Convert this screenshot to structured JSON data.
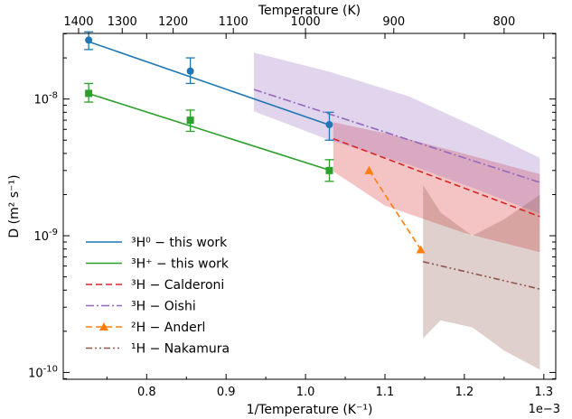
{
  "chart_data": {
    "type": "line",
    "xlabel": "1/Temperature (K⁻¹)",
    "x_top_label": "Temperature (K)",
    "ylabel": "D (m² s⁻¹)",
    "x_offset_label": "1e−3",
    "x_scale_note": "x values are ×1e-3 K⁻¹",
    "xlim": [
      0.695,
      1.315
    ],
    "ylim_log10": [
      -10.05,
      -7.52
    ],
    "y_scale": "log",
    "grid": false,
    "legend_position": "lower-left",
    "x_ticks": [
      0.8,
      0.9,
      1.0,
      1.1,
      1.2,
      1.3
    ],
    "x_tick_labels": [
      "0.8",
      "0.9",
      "1.0",
      "1.1",
      "1.2",
      "1.3"
    ],
    "y_ticks_exp": [
      -10,
      -9,
      -8
    ],
    "y_tick_labels": [
      "10-10",
      "10-9",
      "10-8"
    ],
    "top_ticks_T": [
      1400,
      1300,
      1200,
      1100,
      1000,
      900,
      800
    ],
    "top_tick_labels": [
      "1400",
      "1300",
      "1200",
      "1100",
      "1000",
      "900",
      "800"
    ],
    "series": [
      {
        "name": "³H⁰ − this work",
        "color": "#1f77b4",
        "style": "solid",
        "marker": "circle",
        "line_x": [
          0.727,
          1.03
        ],
        "line_log10y": [
          -7.58,
          -8.19
        ],
        "points": [
          {
            "x": 0.727,
            "y": 2.7e-08,
            "err_lo": 2.3e-08,
            "err_hi": 3.1e-08
          },
          {
            "x": 0.855,
            "y": 1.6e-08,
            "err_lo": 1.3e-08,
            "err_hi": 2e-08
          },
          {
            "x": 1.03,
            "y": 6.5e-09,
            "err_lo": 5e-09,
            "err_hi": 8e-09
          }
        ]
      },
      {
        "name": "³H⁺ − this work",
        "color": "#2ca02c",
        "style": "solid",
        "marker": "square",
        "line_x": [
          0.727,
          1.03
        ],
        "line_log10y": [
          -7.96,
          -8.52
        ],
        "points": [
          {
            "x": 0.727,
            "y": 1.1e-08,
            "err_lo": 9.5e-09,
            "err_hi": 1.3e-08
          },
          {
            "x": 0.855,
            "y": 7e-09,
            "err_lo": 5.8e-09,
            "err_hi": 8.3e-09
          },
          {
            "x": 1.03,
            "y": 3e-09,
            "err_lo": 2.5e-09,
            "err_hi": 3.6e-09
          }
        ]
      },
      {
        "name": "³H − Calderoni",
        "color": "#d62728",
        "style": "dashed",
        "marker": "none",
        "line_x": [
          1.035,
          1.295
        ],
        "line_log10y": [
          -8.29,
          -8.86
        ],
        "band": {
          "x": [
            1.035,
            1.1,
            1.2,
            1.295
          ],
          "lo_log10": [
            -8.53,
            -8.78,
            -8.98,
            -9.12
          ],
          "hi_log10": [
            -8.17,
            -8.25,
            -8.4,
            -8.55
          ]
        }
      },
      {
        "name": "³H − Oishi",
        "color": "#9467bd",
        "style": "dashdot",
        "marker": "none",
        "line_x": [
          0.935,
          1.295
        ],
        "line_log10y": [
          -7.93,
          -8.61
        ],
        "band": {
          "x": [
            0.935,
            1.03,
            1.13,
            1.22,
            1.295
          ],
          "lo_log10": [
            -8.09,
            -8.3,
            -8.48,
            -8.67,
            -8.84
          ],
          "hi_log10": [
            -7.66,
            -7.8,
            -7.98,
            -8.22,
            -8.43
          ]
        }
      },
      {
        "name": "²H − Anderl",
        "color": "#ff7f0e",
        "style": "dashed",
        "marker": "triangle",
        "line_x": [
          1.08,
          1.145
        ],
        "line_log10y": [
          -8.52,
          -9.1
        ],
        "points": [
          {
            "x": 1.08,
            "y": 3e-09
          },
          {
            "x": 1.145,
            "y": 7.9e-10
          }
        ]
      },
      {
        "name": "¹H − Nakamura",
        "color": "#8c564b",
        "style": "dashdotdot",
        "marker": "none",
        "line_x": [
          1.148,
          1.295
        ],
        "line_log10y": [
          -9.19,
          -9.39
        ],
        "band": {
          "x": [
            1.148,
            1.17,
            1.21,
            1.25,
            1.295
          ],
          "lo_log10": [
            -9.75,
            -9.62,
            -9.67,
            -9.84,
            -9.98
          ],
          "hi_log10": [
            -8.63,
            -8.83,
            -9.0,
            -8.88,
            -8.7
          ]
        }
      }
    ]
  }
}
